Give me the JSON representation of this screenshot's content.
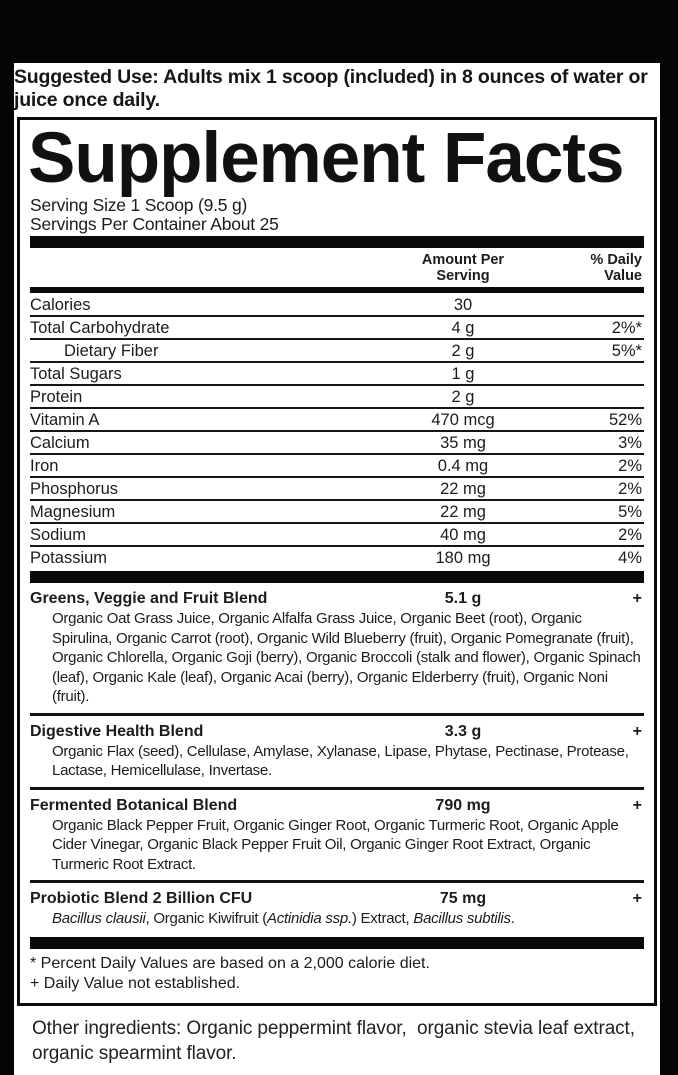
{
  "page": {
    "background_color": "#050505",
    "label_background": "#ffffff",
    "text_color": "#1c1c1c"
  },
  "suggested_use": {
    "label": "Suggested Use:",
    "text": " Adults mix 1 scoop (included) in 8 ounces of water or juice once daily."
  },
  "supplement_facts": {
    "title": "Supplement Facts",
    "serving_size": "Serving Size 1 Scoop (9.5 g)",
    "servings_per_container": "Servings Per Container About 25",
    "columns": {
      "amount_line1": "Amount Per",
      "amount_line2": "Serving",
      "dv_line1": "% Daily",
      "dv_line2": "Value"
    },
    "nutrients": [
      {
        "name": "Calories",
        "amount": "30",
        "dv": ""
      },
      {
        "name": "Total Carbohydrate",
        "amount": "4 g",
        "dv": "2%*"
      },
      {
        "name": "Dietary Fiber",
        "amount": "2 g",
        "dv": "5%*"
      },
      {
        "name": "Total Sugars",
        "amount": "1 g",
        "dv": ""
      },
      {
        "name": "Protein",
        "amount": "2 g",
        "dv": ""
      },
      {
        "name": "Vitamin A",
        "amount": "470 mcg",
        "dv": "52%"
      },
      {
        "name": "Calcium",
        "amount": "35 mg",
        "dv": "3%"
      },
      {
        "name": "Iron",
        "amount": "0.4 mg",
        "dv": "2%"
      },
      {
        "name": "Phosphorus",
        "amount": "22 mg",
        "dv": "2%"
      },
      {
        "name": "Magnesium",
        "amount": "22 mg",
        "dv": "5%"
      },
      {
        "name": "Sodium",
        "amount": "40 mg",
        "dv": "2%"
      },
      {
        "name": "Potassium",
        "amount": "180 mg",
        "dv": "4%"
      }
    ],
    "blends": [
      {
        "name": "Greens, Veggie and Fruit Blend",
        "amount": "5.1 g",
        "dv": "+",
        "ingredients": "Organic Oat Grass Juice, Organic Alfalfa Grass Juice, Organic Beet (root), Organic Spirulina, Organic Carrot (root), Organic Wild Blueberry (fruit), Organic Pomegranate (fruit), Organic Chlorella, Organic Goji (berry), Organic Broccoli (stalk and flower), Organic Spinach (leaf), Organic Kale (leaf), Organic Acai (berry), Organic Elderberry (fruit), Organic Noni (fruit)."
      },
      {
        "name": "Digestive Health Blend",
        "amount": "3.3 g",
        "dv": "+",
        "ingredients": "Organic Flax (seed), Cellulase, Amylase, Xylanase, Lipase, Phytase, Pectinase, Protease, Lactase, Hemicellulase, Invertase."
      },
      {
        "name": "Fermented Botanical Blend",
        "amount": "790 mg",
        "dv": "+",
        "ingredients": "Organic Black Pepper Fruit, Organic Ginger Root, Organic Turmeric Root, Organic Apple Cider Vinegar, Organic Black Pepper Fruit Oil, Organic Ginger Root Extract, Organic Turmeric Root Extract."
      },
      {
        "name": "Probiotic Blend 2 Billion CFU",
        "amount": "75 mg",
        "dv": "+",
        "segments": [
          {
            "t": "Bacillus clausii",
            "italic": true
          },
          {
            "t": ", Organic Kiwifruit (",
            "italic": false
          },
          {
            "t": "Actinidia ssp.",
            "italic": true
          },
          {
            "t": ") Extract, ",
            "italic": false
          },
          {
            "t": "Bacillus subtilis",
            "italic": true
          },
          {
            "t": ".",
            "italic": false
          }
        ]
      }
    ],
    "footnotes": [
      "* Percent Daily Values are based on a 2,000 calorie diet.",
      "+ Daily Value not established."
    ]
  },
  "other_ingredients": "Other ingredients: Organic peppermint flavor,  organic stevia leaf extract, organic spearmint flavor."
}
